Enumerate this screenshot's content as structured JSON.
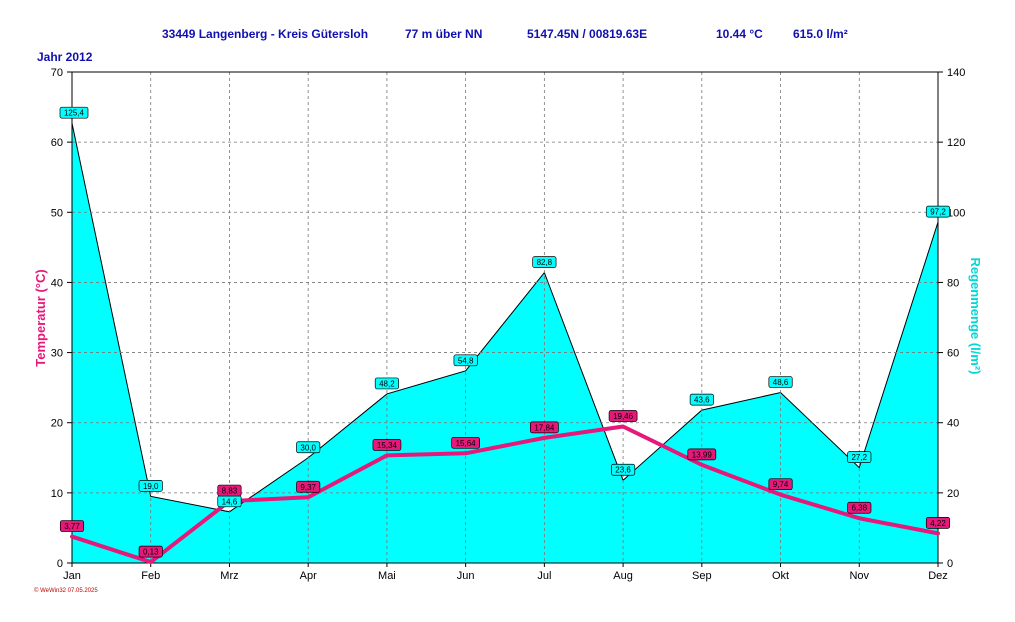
{
  "header": {
    "station": "33449 Langenberg - Kreis Gütersloh",
    "altitude": "77 m über NN",
    "coords": "5147.45N / 00819.63E",
    "mean_temp": "10.44 °C",
    "total_rain": "615.0 l/m²"
  },
  "year_label": "Jahr  2012",
  "credit": "© WeWin32  07.05.2025",
  "chart_data": {
    "type": "area",
    "categories": [
      "Jan",
      "Feb",
      "Mrz",
      "Apr",
      "Mai",
      "Jun",
      "Jul",
      "Aug",
      "Sep",
      "Okt",
      "Nov",
      "Dez"
    ],
    "series": [
      {
        "name": "Temperatur (°C)",
        "axis": "left",
        "type": "line",
        "color": "#e6187a",
        "values": [
          3.77,
          0.13,
          8.83,
          9.37,
          15.34,
          15.64,
          17.84,
          19.46,
          13.99,
          9.74,
          6.38,
          4.22
        ],
        "labels": [
          "3,77",
          "0,13",
          "8,83",
          "9,37",
          "15,34",
          "15,64",
          "17,84",
          "19,46",
          "13,99",
          "9,74",
          "6,38",
          "4,22"
        ]
      },
      {
        "name": "Regenmenge (l/m²)",
        "axis": "right",
        "type": "area",
        "color": "#00ffff",
        "values": [
          125.4,
          19.0,
          14.6,
          30.0,
          48.2,
          54.8,
          82.8,
          23.6,
          43.6,
          48.6,
          27.2,
          97.2
        ],
        "labels": [
          "125,4",
          "19,0",
          "14,6",
          "30,0",
          "48,2",
          "54,8",
          "82,8",
          "23,6",
          "43,6",
          "48,6",
          "27,2",
          "97,2"
        ]
      }
    ],
    "ylabel_left": "Temperatur  (°C)",
    "ylabel_right": "Regenmenge   (l/m²)",
    "ylim_left": [
      0,
      70
    ],
    "ylim_right": [
      0,
      140
    ],
    "yticks_left": [
      "0",
      "10",
      "20",
      "30",
      "40",
      "50",
      "60",
      "70"
    ],
    "yticks_right": [
      "0",
      "20",
      "40",
      "60",
      "80",
      "100",
      "120",
      "140"
    ],
    "grid": true
  },
  "colors": {
    "rain_fill": "#00ffff",
    "temp_line": "#e6187a",
    "header_text": "#1010b0",
    "temp_axis_title": "#e6187a",
    "rain_axis_title": "#00d8d8"
  }
}
